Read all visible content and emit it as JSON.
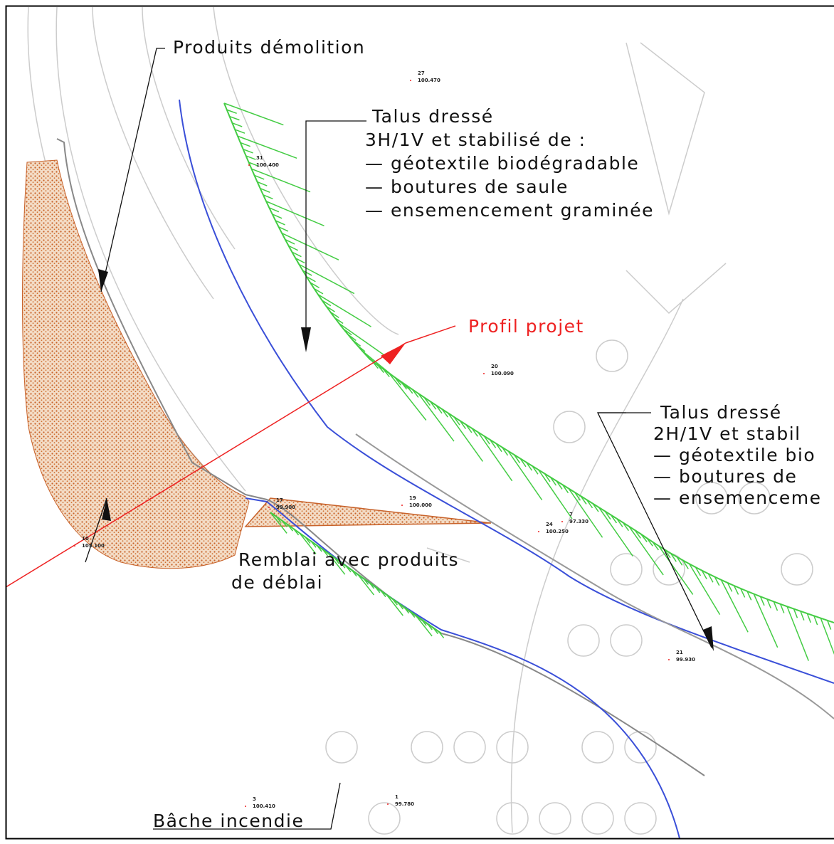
{
  "labels": {
    "produits": "Produits démolition",
    "talus1": [
      "Talus dressé",
      "3H/1V et stabilisé de :",
      "— géotextile biodégradable",
      "— boutures de saule",
      "— ensemencement graminée"
    ],
    "profil": "Profil projet",
    "talus2": [
      "Talus dressé",
      "2H/1V et stabil",
      "— géotextile bio",
      "— boutures de",
      "— ensemenceme"
    ],
    "remblai": [
      "Remblai avec produits",
      "de déblai"
    ],
    "bache": "Bâche incendie"
  },
  "points": [
    {
      "id": "27",
      "z": "100.470"
    },
    {
      "id": "31",
      "z": "100.400"
    },
    {
      "id": "20",
      "z": "100.090"
    },
    {
      "id": "17",
      "z": "99.900"
    },
    {
      "id": "19",
      "z": "100.000"
    },
    {
      "id": "24",
      "z": "100.250"
    },
    {
      "id": "21",
      "z": "99.930"
    },
    {
      "id": "7",
      "z": "97.330"
    },
    {
      "id": "1",
      "z": "99.780"
    },
    {
      "id": "3",
      "z": "100.410"
    },
    {
      "id": "10",
      "z": "105.100"
    }
  ]
}
